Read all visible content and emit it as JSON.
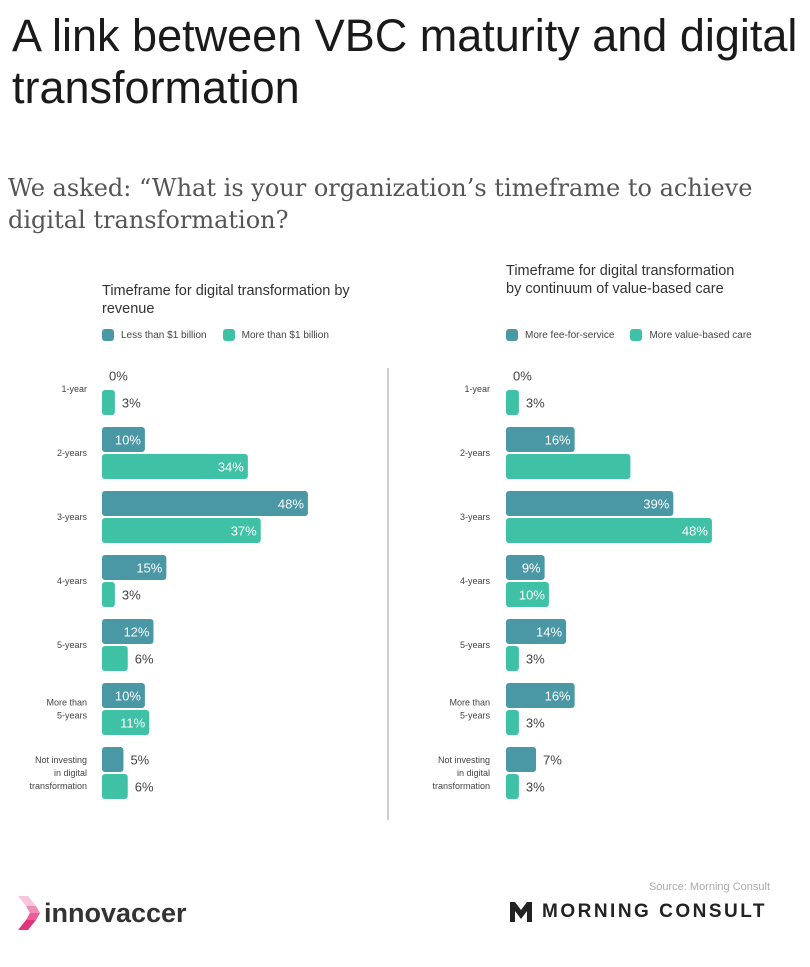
{
  "header": {
    "title": "A link between VBC maturity and digital transformation",
    "subtitle": "We asked: “What is your organization’s timeframe to achieve digital transformation?"
  },
  "colors": {
    "dark": "#4a97a5",
    "teal": "#3fc1a5"
  },
  "chart_data": [
    {
      "type": "bar",
      "orientation": "horizontal",
      "title": "Timeframe for digital transformation by revenue",
      "categories": [
        "1-year",
        "2-years",
        "3-years",
        "4-years",
        "5-years",
        "More than 5-years",
        "Not investing in digital transformation"
      ],
      "series": [
        {
          "name": "Less than $1 billion",
          "color": "#4a97a5",
          "values": [
            0,
            10,
            48,
            15,
            12,
            10,
            5
          ],
          "labels": [
            "0%",
            "10%",
            "48%",
            "15%",
            "12%",
            "10%",
            "5%"
          ]
        },
        {
          "name": "More than $1 billion",
          "color": "#3fc1a5",
          "values": [
            3,
            34,
            37,
            3,
            6,
            11,
            6
          ],
          "labels": [
            "3%",
            "34%",
            "37%",
            "3%",
            "6%",
            "11%",
            "6%"
          ]
        }
      ],
      "xlim": [
        0,
        50
      ],
      "grid": false,
      "legend": "top-left"
    },
    {
      "type": "bar",
      "orientation": "horizontal",
      "title": "Timeframe for digital transformation by continuum of value-based care",
      "categories": [
        "1-year",
        "2-years",
        "3-years",
        "4-years",
        "5-years",
        "More than 5-years",
        "Not investing in digital transformation"
      ],
      "series": [
        {
          "name": "More fee-for-service",
          "color": "#4a97a5",
          "values": [
            0,
            16,
            39,
            9,
            14,
            16,
            7
          ],
          "labels": [
            "0%",
            "16%",
            "39%",
            "9%",
            "14%",
            "16%",
            "7%"
          ]
        },
        {
          "name": "More value-based care",
          "color": "#3fc1a5",
          "values": [
            3,
            29,
            48,
            10,
            3,
            3,
            3
          ],
          "labels": [
            "3%",
            "",
            "48%",
            "10%",
            "3%",
            "3%",
            "3%"
          ]
        }
      ],
      "xlim": [
        0,
        50
      ],
      "grid": false,
      "legend": "top-left"
    }
  ],
  "footer": {
    "source": "Source: Morning Consult",
    "logo_left": "innovaccer",
    "logo_right": "MORNING CONSULT"
  }
}
